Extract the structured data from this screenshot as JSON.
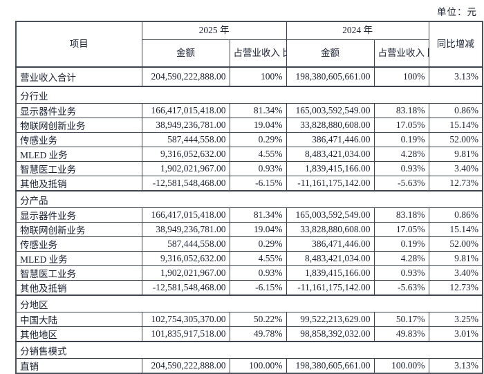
{
  "unit_label": "单位：元",
  "colors": {
    "header_bg": "#b8dde8",
    "border": "#3d434e",
    "text": "#1b2133"
  },
  "table": {
    "header": {
      "item": "项目",
      "year_2025": "2025 年",
      "year_2024": "2024 年",
      "amount_2025": "金额",
      "share_2025": "占营业收入\n比重",
      "amount_2024": "金额",
      "share_2024": "占营业收入\n比重",
      "yoy": "同比增减"
    },
    "rows": [
      {
        "type": "total",
        "label": "营业收入合计",
        "a2025": "204,590,222,888.00",
        "s2025": "100%",
        "a2024": "198,380,605,661.00",
        "s2024": "100%",
        "yoy": "3.13%"
      },
      {
        "type": "section",
        "label": "分行业"
      },
      {
        "type": "data",
        "label": "显示器件业务",
        "a2025": "166,417,015,418.00",
        "s2025": "81.34%",
        "a2024": "165,003,592,549.00",
        "s2024": "83.18%",
        "yoy": "0.86%"
      },
      {
        "type": "data",
        "label": "物联网创新业务",
        "a2025": "38,949,236,781.00",
        "s2025": "19.04%",
        "a2024": "33,828,880,608.00",
        "s2024": "17.05%",
        "yoy": "15.14%"
      },
      {
        "type": "data",
        "label": "传感业务",
        "a2025": "587,444,558.00",
        "s2025": "0.29%",
        "a2024": "386,471,446.00",
        "s2024": "0.19%",
        "yoy": "52.00%"
      },
      {
        "type": "data",
        "label": "MLED 业务",
        "a2025": "9,316,052,632.00",
        "s2025": "4.55%",
        "a2024": "8,483,421,034.00",
        "s2024": "4.28%",
        "yoy": "9.81%"
      },
      {
        "type": "data",
        "label": "智慧医工业务",
        "a2025": "1,902,021,967.00",
        "s2025": "0.93%",
        "a2024": "1,839,415,166.00",
        "s2024": "0.93%",
        "yoy": "3.40%"
      },
      {
        "type": "data",
        "label": "其他及抵销",
        "a2025": "-12,581,548,468.00",
        "s2025": "-6.15%",
        "a2024": "-11,161,175,142.00",
        "s2024": "-5.63%",
        "yoy": "12.73%"
      },
      {
        "type": "section",
        "label": "分产品"
      },
      {
        "type": "data",
        "label": "显示器件业务",
        "a2025": "166,417,015,418.00",
        "s2025": "81.34%",
        "a2024": "165,003,592,549.00",
        "s2024": "83.18%",
        "yoy": "0.86%"
      },
      {
        "type": "data",
        "label": "物联网创新业务",
        "a2025": "38,949,236,781.00",
        "s2025": "19.04%",
        "a2024": "33,828,880,608.00",
        "s2024": "17.05%",
        "yoy": "15.14%"
      },
      {
        "type": "data",
        "label": "传感业务",
        "a2025": "587,444,558.00",
        "s2025": "0.29%",
        "a2024": "386,471,446.00",
        "s2024": "0.19%",
        "yoy": "52.00%"
      },
      {
        "type": "data",
        "label": "MLED 业务",
        "a2025": "9,316,052,632.00",
        "s2025": "4.55%",
        "a2024": "8,483,421,034.00",
        "s2024": "4.28%",
        "yoy": "9.81%"
      },
      {
        "type": "data",
        "label": "智慧医工业务",
        "a2025": "1,902,021,967.00",
        "s2025": "0.93%",
        "a2024": "1,839,415,166.00",
        "s2024": "0.93%",
        "yoy": "3.40%"
      },
      {
        "type": "data",
        "label": "其他及抵销",
        "a2025": "-12,581,548,468.00",
        "s2025": "-6.15%",
        "a2024": "-11,161,175,142.00",
        "s2024": "-5.63%",
        "yoy": "12.73%"
      },
      {
        "type": "section",
        "label": "分地区"
      },
      {
        "type": "data",
        "label": "中国大陆",
        "a2025": "102,754,305,370.00",
        "s2025": "50.22%",
        "a2024": "99,522,213,629.00",
        "s2024": "50.17%",
        "yoy": "3.25%"
      },
      {
        "type": "data",
        "label": "其他地区",
        "a2025": "101,835,917,518.00",
        "s2025": "49.78%",
        "a2024": "98,858,392,032.00",
        "s2024": "49.83%",
        "yoy": "3.01%"
      },
      {
        "type": "section",
        "label": "分销售模式"
      },
      {
        "type": "data",
        "label": "直销",
        "a2025": "204,590,222,888.00",
        "s2025": "100.00%",
        "a2024": "198,380,605,661.00",
        "s2024": "100.00%",
        "yoy": "3.13%"
      }
    ]
  }
}
